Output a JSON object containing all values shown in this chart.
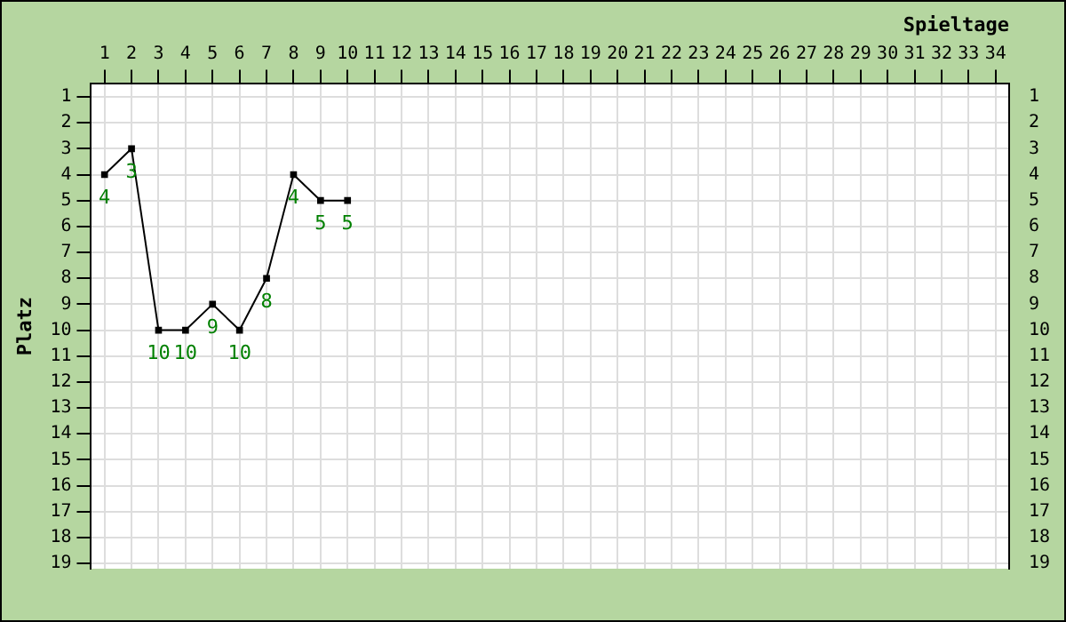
{
  "chart_data": {
    "type": "line",
    "xlabel": "Spieltage",
    "ylabel": "Platz",
    "x": [
      1,
      2,
      3,
      4,
      5,
      6,
      7,
      8,
      9,
      10
    ],
    "series": [
      {
        "color": "#000000",
        "values": [
          4,
          3,
          10,
          10,
          9,
          10,
          8,
          4,
          5,
          5
        ]
      }
    ],
    "xlim": [
      0.5,
      34.5
    ],
    "xticks": [
      1,
      2,
      3,
      4,
      5,
      6,
      7,
      8,
      9,
      10,
      11,
      12,
      13,
      14,
      15,
      16,
      17,
      18,
      19,
      20,
      21,
      22,
      23,
      24,
      25,
      26,
      27,
      28,
      29,
      30,
      31,
      32,
      33,
      34
    ],
    "ylim": [
      19.2,
      0.5
    ],
    "yticks": [
      1,
      2,
      3,
      4,
      5,
      6,
      7,
      8,
      9,
      10,
      11,
      12,
      13,
      14,
      15,
      16,
      17,
      18,
      19
    ],
    "y2lim": [
      19.2,
      0.5
    ],
    "y2ticks": [
      1,
      2,
      3,
      4,
      5,
      6,
      7,
      8,
      9,
      10,
      11,
      12,
      13,
      14,
      15,
      16,
      17,
      18,
      19
    ],
    "grid": true,
    "legend": false,
    "marker": "square",
    "line_style": "solid",
    "data_labels": true
  }
}
